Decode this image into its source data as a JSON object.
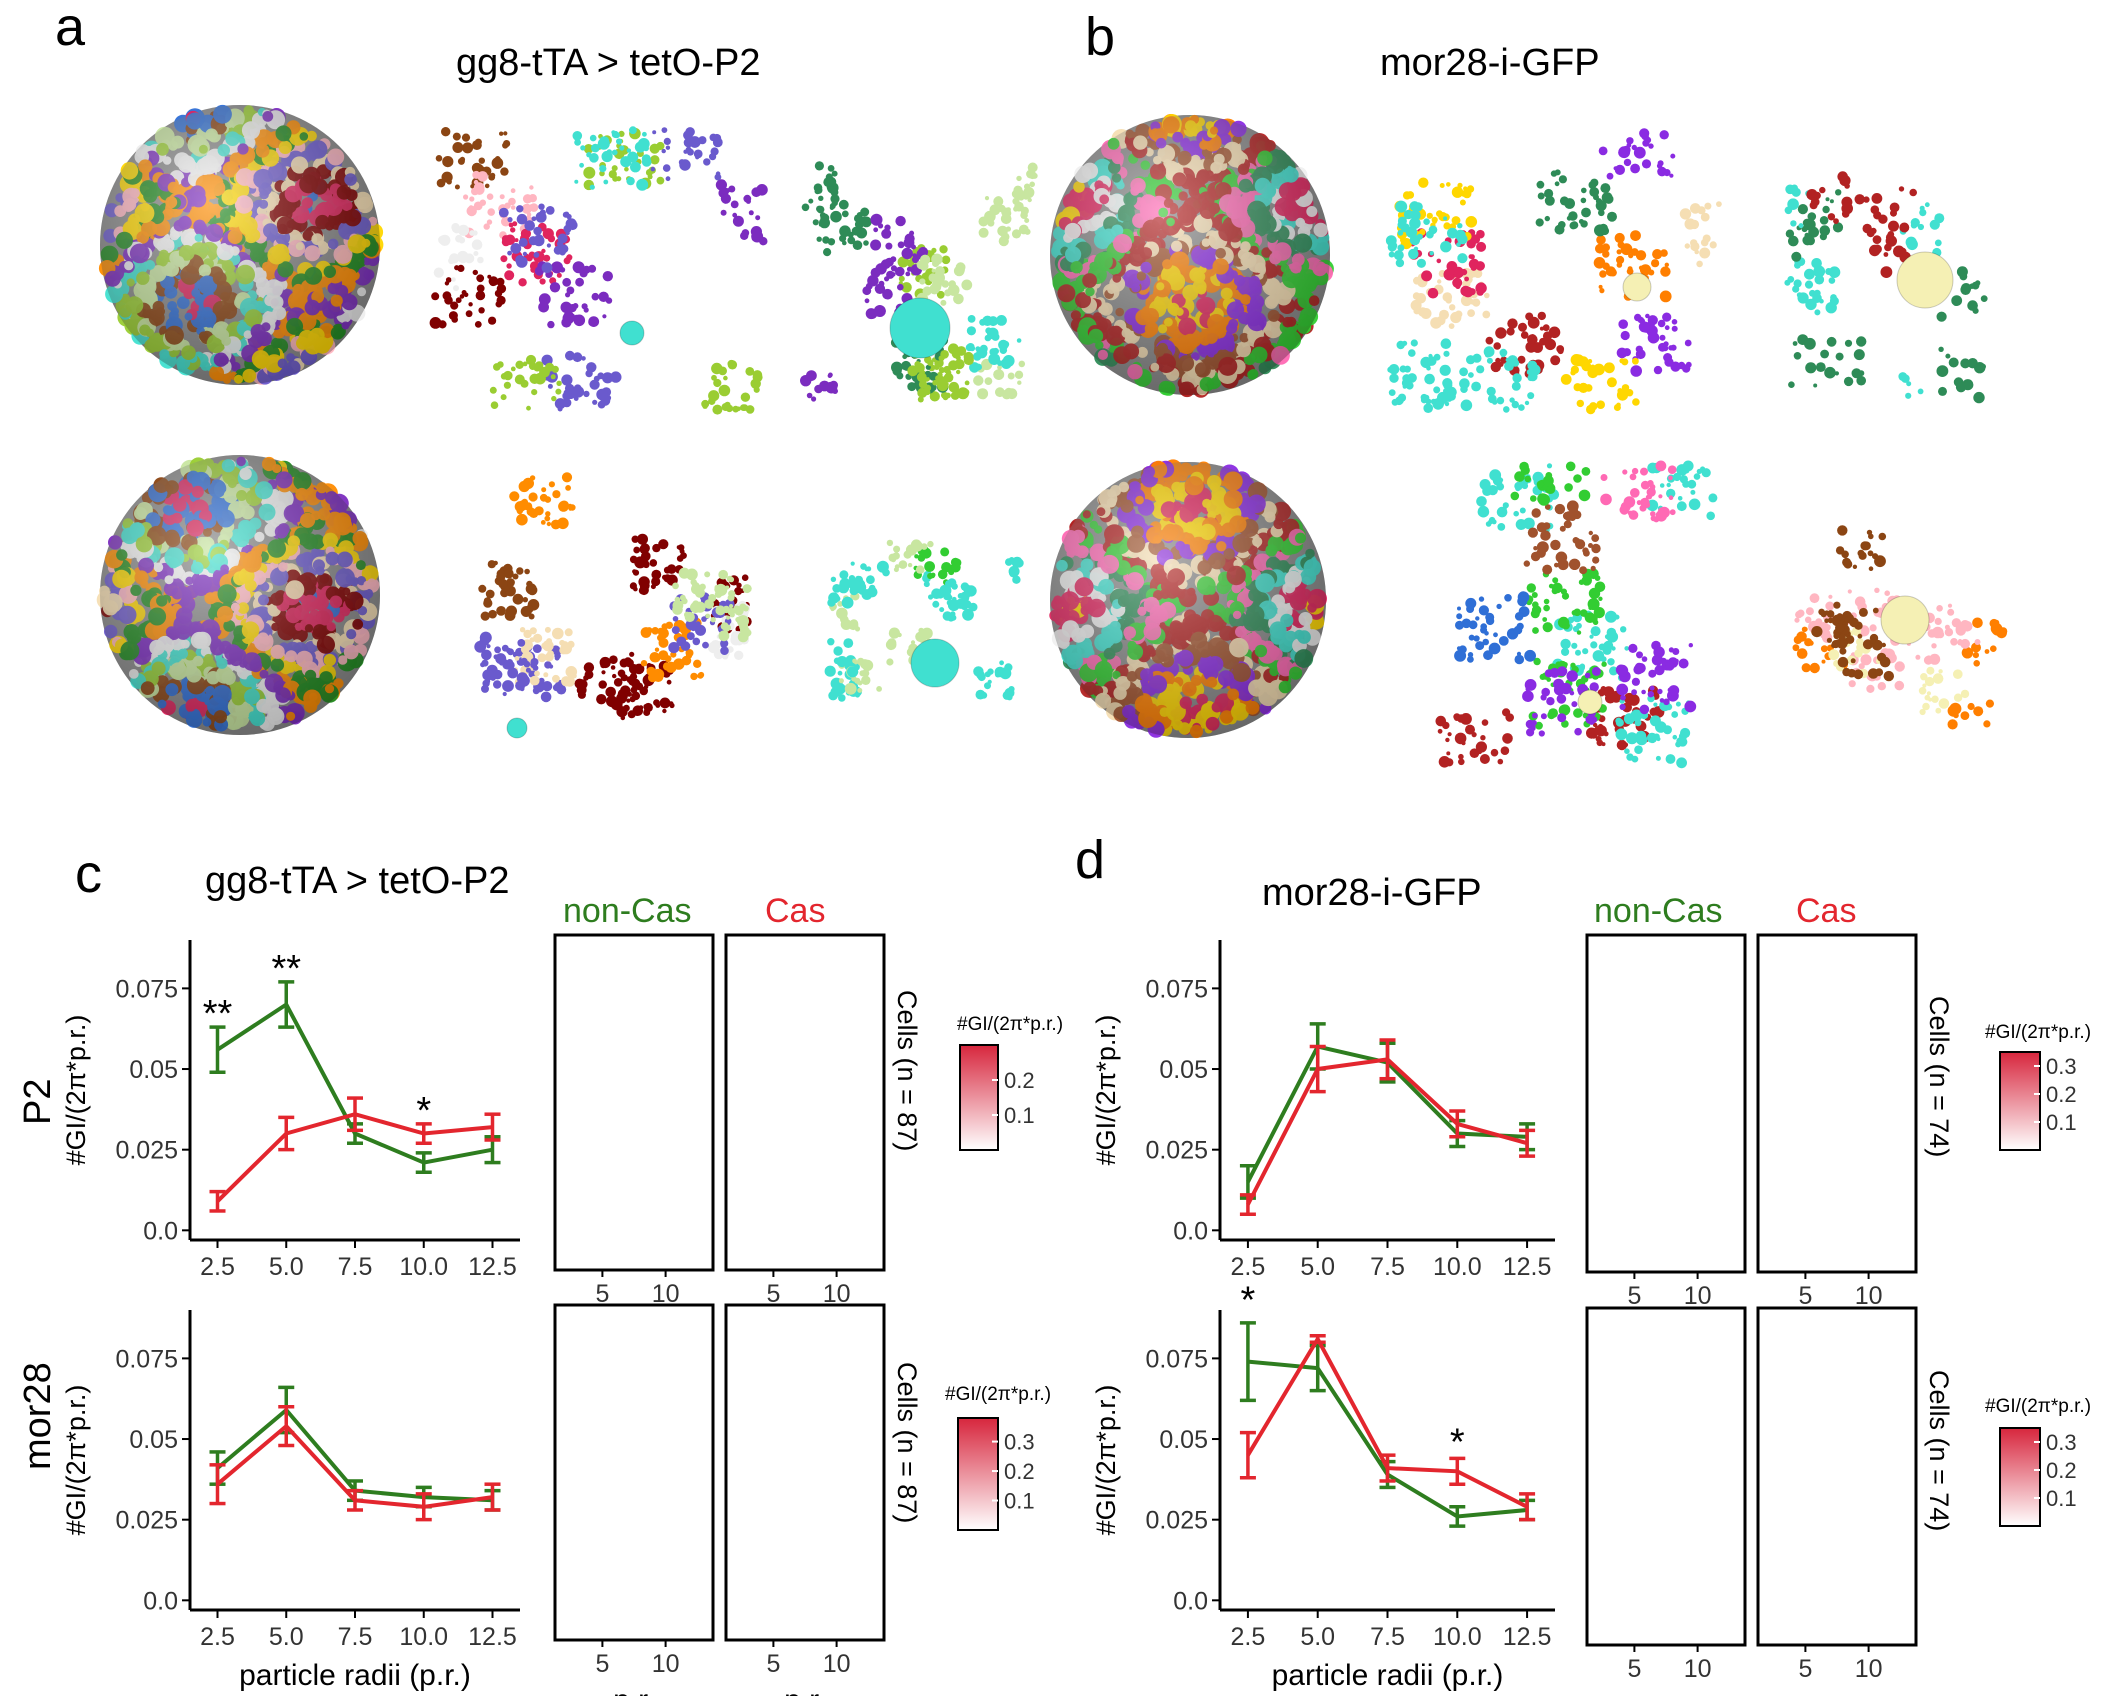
{
  "figure": {
    "panel_labels": {
      "a": "a",
      "b": "b",
      "c": "c",
      "d": "d"
    },
    "a": {
      "title": "gg8-tTA > tetO-P2"
    },
    "b": {
      "title": "mor28-i-GFP"
    },
    "c": {
      "title": "gg8-tTA > tetO-P2"
    },
    "d": {
      "title": "mor28-i-GFP"
    },
    "row_labels": {
      "p2": "P2",
      "mor28": "mor28"
    },
    "heatmap_headers": {
      "noncas": "non-Cas",
      "cas": "Cas"
    },
    "cells_labels": {
      "c": "Cells (n = 87)",
      "d": "Cells (n = 74)"
    },
    "colorbar_title": "#GI/(2π*p.r.)",
    "colors": {
      "noncas": "#2e7d1f",
      "cas": "#e3262e",
      "heat": "#d7263d"
    }
  },
  "chart_data": [
    {
      "id": "c-top",
      "type": "line",
      "x": [
        2.5,
        5.0,
        7.5,
        10.0,
        12.5
      ],
      "xlabel": "",
      "ylabel": "#GI/(2π*p.r.)",
      "ylim": [
        -0.003,
        0.09
      ],
      "yticks": [
        "0.0",
        "0.025",
        "0.05",
        "0.075"
      ],
      "xticks": [
        "2.5",
        "5.0",
        "7.5",
        "10.0",
        "12.5"
      ],
      "series": [
        {
          "name": "non-Cas",
          "color": "#2e7d1f",
          "values": [
            0.056,
            0.07,
            0.03,
            0.021,
            0.025
          ],
          "err": [
            0.007,
            0.007,
            0.003,
            0.003,
            0.004
          ]
        },
        {
          "name": "Cas",
          "color": "#e3262e",
          "values": [
            0.009,
            0.03,
            0.036,
            0.03,
            0.032
          ],
          "err": [
            0.003,
            0.005,
            0.005,
            0.003,
            0.004
          ]
        }
      ],
      "annotations": [
        {
          "x": 2.5,
          "y": 0.067,
          "text": "**"
        },
        {
          "x": 5.0,
          "y": 0.081,
          "text": "**"
        },
        {
          "x": 10.0,
          "y": 0.037,
          "text": "*"
        }
      ]
    },
    {
      "id": "c-bottom",
      "type": "line",
      "x": [
        2.5,
        5.0,
        7.5,
        10.0,
        12.5
      ],
      "xlabel": "particle radii (p.r.)",
      "ylabel": "#GI/(2π*p.r.)",
      "ylim": [
        -0.003,
        0.09
      ],
      "yticks": [
        "0.0",
        "0.025",
        "0.05",
        "0.075"
      ],
      "xticks": [
        "2.5",
        "5.0",
        "7.5",
        "10.0",
        "12.5"
      ],
      "series": [
        {
          "name": "non-Cas",
          "color": "#2e7d1f",
          "values": [
            0.041,
            0.059,
            0.034,
            0.032,
            0.031
          ],
          "err": [
            0.005,
            0.007,
            0.003,
            0.003,
            0.003
          ]
        },
        {
          "name": "Cas",
          "color": "#e3262e",
          "values": [
            0.036,
            0.054,
            0.031,
            0.029,
            0.032
          ],
          "err": [
            0.006,
            0.006,
            0.003,
            0.004,
            0.004
          ]
        }
      ],
      "annotations": []
    },
    {
      "id": "d-top",
      "type": "line",
      "x": [
        2.5,
        5.0,
        7.5,
        10.0,
        12.5
      ],
      "xlabel": "",
      "ylabel": "#GI/(2π*p.r.)",
      "ylim": [
        -0.003,
        0.09
      ],
      "yticks": [
        "0.0",
        "0.025",
        "0.05",
        "0.075"
      ],
      "xticks": [
        "2.5",
        "5.0",
        "7.5",
        "10.0",
        "12.5"
      ],
      "series": [
        {
          "name": "non-Cas",
          "color": "#2e7d1f",
          "values": [
            0.015,
            0.057,
            0.052,
            0.03,
            0.029
          ],
          "err": [
            0.005,
            0.007,
            0.006,
            0.004,
            0.004
          ]
        },
        {
          "name": "Cas",
          "color": "#e3262e",
          "values": [
            0.008,
            0.05,
            0.053,
            0.033,
            0.027
          ],
          "err": [
            0.003,
            0.007,
            0.006,
            0.004,
            0.004
          ]
        }
      ],
      "annotations": []
    },
    {
      "id": "d-bottom",
      "type": "line",
      "x": [
        2.5,
        5.0,
        7.5,
        10.0,
        12.5
      ],
      "xlabel": "particle radii (p.r.)",
      "ylabel": "#GI/(2π*p.r.)",
      "ylim": [
        -0.003,
        0.09
      ],
      "yticks": [
        "0.0",
        "0.025",
        "0.05",
        "0.075"
      ],
      "xticks": [
        "2.5",
        "5.0",
        "7.5",
        "10.0",
        "12.5"
      ],
      "series": [
        {
          "name": "non-Cas",
          "color": "#2e7d1f",
          "values": [
            0.074,
            0.072,
            0.039,
            0.026,
            0.028
          ],
          "err": [
            0.012,
            0.007,
            0.004,
            0.003,
            0.003
          ]
        },
        {
          "name": "Cas",
          "color": "#e3262e",
          "values": [
            0.045,
            0.081,
            0.041,
            0.04,
            0.029
          ],
          "err": [
            0.007,
            0.001,
            0.004,
            0.004,
            0.004
          ]
        }
      ],
      "annotations": [
        {
          "x": 2.5,
          "y": 0.093,
          "text": "*"
        },
        {
          "x": 10.0,
          "y": 0.049,
          "text": "*"
        }
      ]
    },
    {
      "id": "heatmaps",
      "type": "heatmap",
      "xticks": [
        "5",
        "10"
      ],
      "xlabel": "p.r.",
      "colorbars": [
        {
          "panel": "c-top",
          "ticks": [
            "0.2",
            "0.1"
          ]
        },
        {
          "panel": "c-bottom",
          "ticks": [
            "0.3",
            "0.2",
            "0.1"
          ]
        },
        {
          "panel": "d-top",
          "ticks": [
            "0.3",
            "0.2",
            "0.1"
          ]
        },
        {
          "panel": "d-bottom",
          "ticks": [
            "0.3",
            "0.2",
            "0.1"
          ]
        }
      ]
    }
  ]
}
